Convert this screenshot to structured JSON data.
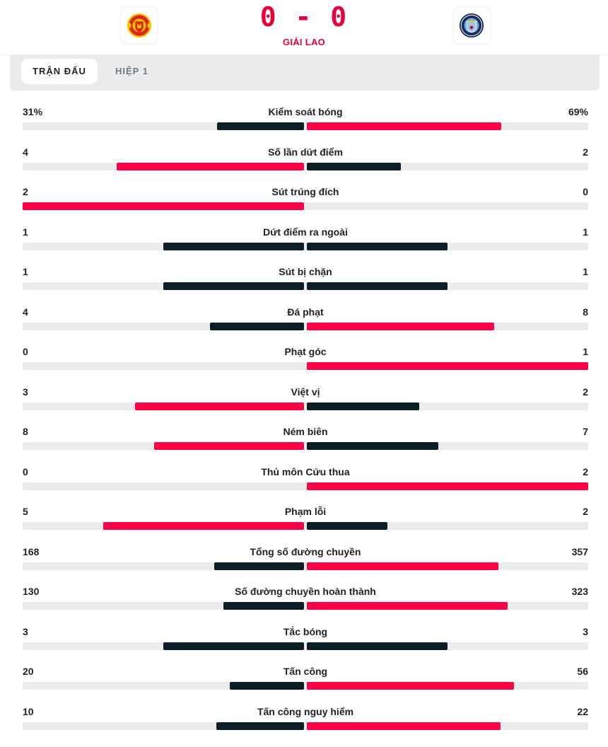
{
  "header": {
    "home_team": {
      "name": "Manchester United",
      "logo_icon": "man-utd-crest-icon"
    },
    "away_team": {
      "name": "Manchester City",
      "logo_icon": "man-city-crest-icon"
    },
    "score": "0 - 0",
    "status": "GIẢI LAO"
  },
  "tabs": [
    {
      "label": "TRẬN ĐẤU",
      "active": true
    },
    {
      "label": "HIỆP 1",
      "active": false
    }
  ],
  "colors": {
    "accent_red": "#ff0046",
    "dark": "#0d1f26",
    "track": "#ececec"
  },
  "stats": [
    {
      "label": "Kiểm soát bóng",
      "home": "31%",
      "away": "69%",
      "home_n": 31,
      "away_n": 69
    },
    {
      "label": "Số lần dứt điểm",
      "home": "4",
      "away": "2",
      "home_n": 4,
      "away_n": 2
    },
    {
      "label": "Sút trúng đích",
      "home": "2",
      "away": "0",
      "home_n": 2,
      "away_n": 0
    },
    {
      "label": "Dứt điểm ra ngoài",
      "home": "1",
      "away": "1",
      "home_n": 1,
      "away_n": 1
    },
    {
      "label": "Sút bị chặn",
      "home": "1",
      "away": "1",
      "home_n": 1,
      "away_n": 1
    },
    {
      "label": "Đá phạt",
      "home": "4",
      "away": "8",
      "home_n": 4,
      "away_n": 8
    },
    {
      "label": "Phạt góc",
      "home": "0",
      "away": "1",
      "home_n": 0,
      "away_n": 1
    },
    {
      "label": "Việt vị",
      "home": "3",
      "away": "2",
      "home_n": 3,
      "away_n": 2
    },
    {
      "label": "Ném biên",
      "home": "8",
      "away": "7",
      "home_n": 8,
      "away_n": 7
    },
    {
      "label": "Thủ môn Cứu thua",
      "home": "0",
      "away": "2",
      "home_n": 0,
      "away_n": 2
    },
    {
      "label": "Phạm lỗi",
      "home": "5",
      "away": "2",
      "home_n": 5,
      "away_n": 2
    },
    {
      "label": "Tổng số đường chuyền",
      "home": "168",
      "away": "357",
      "home_n": 168,
      "away_n": 357
    },
    {
      "label": "Số đường chuyền hoàn thành",
      "home": "130",
      "away": "323",
      "home_n": 130,
      "away_n": 323
    },
    {
      "label": "Tắc bóng",
      "home": "3",
      "away": "3",
      "home_n": 3,
      "away_n": 3
    },
    {
      "label": "Tấn công",
      "home": "20",
      "away": "56",
      "home_n": 20,
      "away_n": 56
    },
    {
      "label": "Tấn công nguy hiểm",
      "home": "10",
      "away": "22",
      "home_n": 10,
      "away_n": 22
    }
  ]
}
